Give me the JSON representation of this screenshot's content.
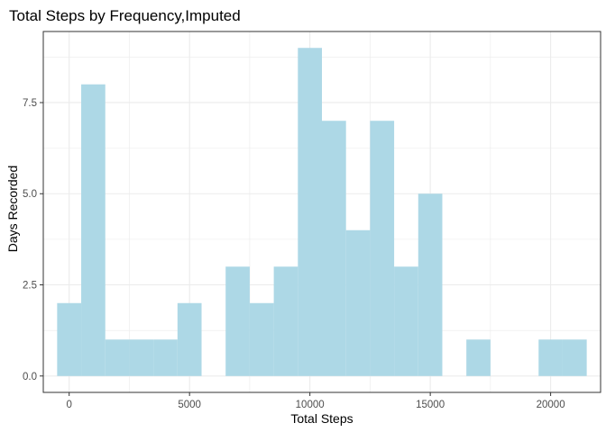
{
  "chart_data": {
    "type": "bar",
    "title": "Total Steps by Frequency,Imputed",
    "xlabel": "Total Steps",
    "ylabel": "Days Recorded",
    "xlim": [
      -1075,
      22075
    ],
    "ylim": [
      -0.45,
      9.45
    ],
    "x_ticks": [
      0,
      5000,
      10000,
      15000,
      20000
    ],
    "x_tick_labels": [
      "0",
      "5000",
      "10000",
      "15000",
      "20000"
    ],
    "y_ticks": [
      0,
      2.5,
      5,
      7.5
    ],
    "y_tick_labels": [
      "0.0",
      "2.5",
      "5.0",
      "7.5"
    ],
    "bin_width": 1000,
    "bins": [
      {
        "x": 0,
        "count": 2
      },
      {
        "x": 1000,
        "count": 8
      },
      {
        "x": 2000,
        "count": 1
      },
      {
        "x": 3000,
        "count": 1
      },
      {
        "x": 4000,
        "count": 1
      },
      {
        "x": 5000,
        "count": 2
      },
      {
        "x": 6000,
        "count": 0
      },
      {
        "x": 7000,
        "count": 3
      },
      {
        "x": 8000,
        "count": 2
      },
      {
        "x": 9000,
        "count": 3
      },
      {
        "x": 10000,
        "count": 9
      },
      {
        "x": 11000,
        "count": 7
      },
      {
        "x": 12000,
        "count": 4
      },
      {
        "x": 13000,
        "count": 7
      },
      {
        "x": 14000,
        "count": 3
      },
      {
        "x": 15000,
        "count": 5
      },
      {
        "x": 16000,
        "count": 0
      },
      {
        "x": 17000,
        "count": 1
      },
      {
        "x": 18000,
        "count": 0
      },
      {
        "x": 19000,
        "count": 0
      },
      {
        "x": 20000,
        "count": 1
      },
      {
        "x": 21000,
        "count": 1
      }
    ],
    "bar_color": "#add8e6",
    "grid": true,
    "grid_color": "#ebebeb",
    "panel_border_color": "#333333",
    "legend": "none"
  }
}
